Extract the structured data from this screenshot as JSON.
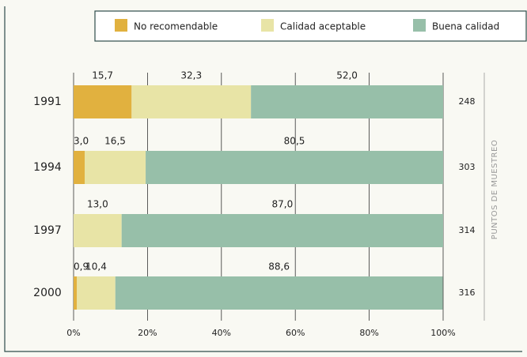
{
  "chart_data": {
    "type": "bar",
    "orientation": "horizontal",
    "stacked": true,
    "categories": [
      "1991",
      "1994",
      "1997",
      "2000"
    ],
    "series": [
      {
        "name": "No recomendable",
        "color": "#e1b13f",
        "values": [
          15.7,
          3.0,
          0,
          0.9
        ],
        "value_labels": [
          "15,7",
          "3,0",
          null,
          "0,9"
        ]
      },
      {
        "name": "Calidad aceptable",
        "color": "#e8e4a6",
        "values": [
          32.3,
          16.5,
          13.0,
          10.4
        ],
        "value_labels": [
          "32,3",
          "16,5",
          "13,0",
          "10,4"
        ]
      },
      {
        "name": "Buena calidad",
        "color": "#97bfa9",
        "values": [
          52.0,
          80.5,
          87.0,
          88.6
        ],
        "value_labels": [
          "52,0",
          "80,5",
          "87,0",
          "88,6"
        ]
      }
    ],
    "xlim": [
      0,
      100
    ],
    "xticks": [
      {
        "value": 0,
        "label": "0%"
      },
      {
        "value": 20,
        "label": "20%"
      },
      {
        "value": 40,
        "label": "40%"
      },
      {
        "value": 60,
        "label": "60%"
      },
      {
        "value": 80,
        "label": "80%"
      },
      {
        "value": 100,
        "label": "100%"
      }
    ],
    "grid": true,
    "legend": "top",
    "sample_points": {
      "label": "PUNTOS DE MUESTREO",
      "values": [
        248,
        303,
        314,
        316
      ]
    }
  }
}
